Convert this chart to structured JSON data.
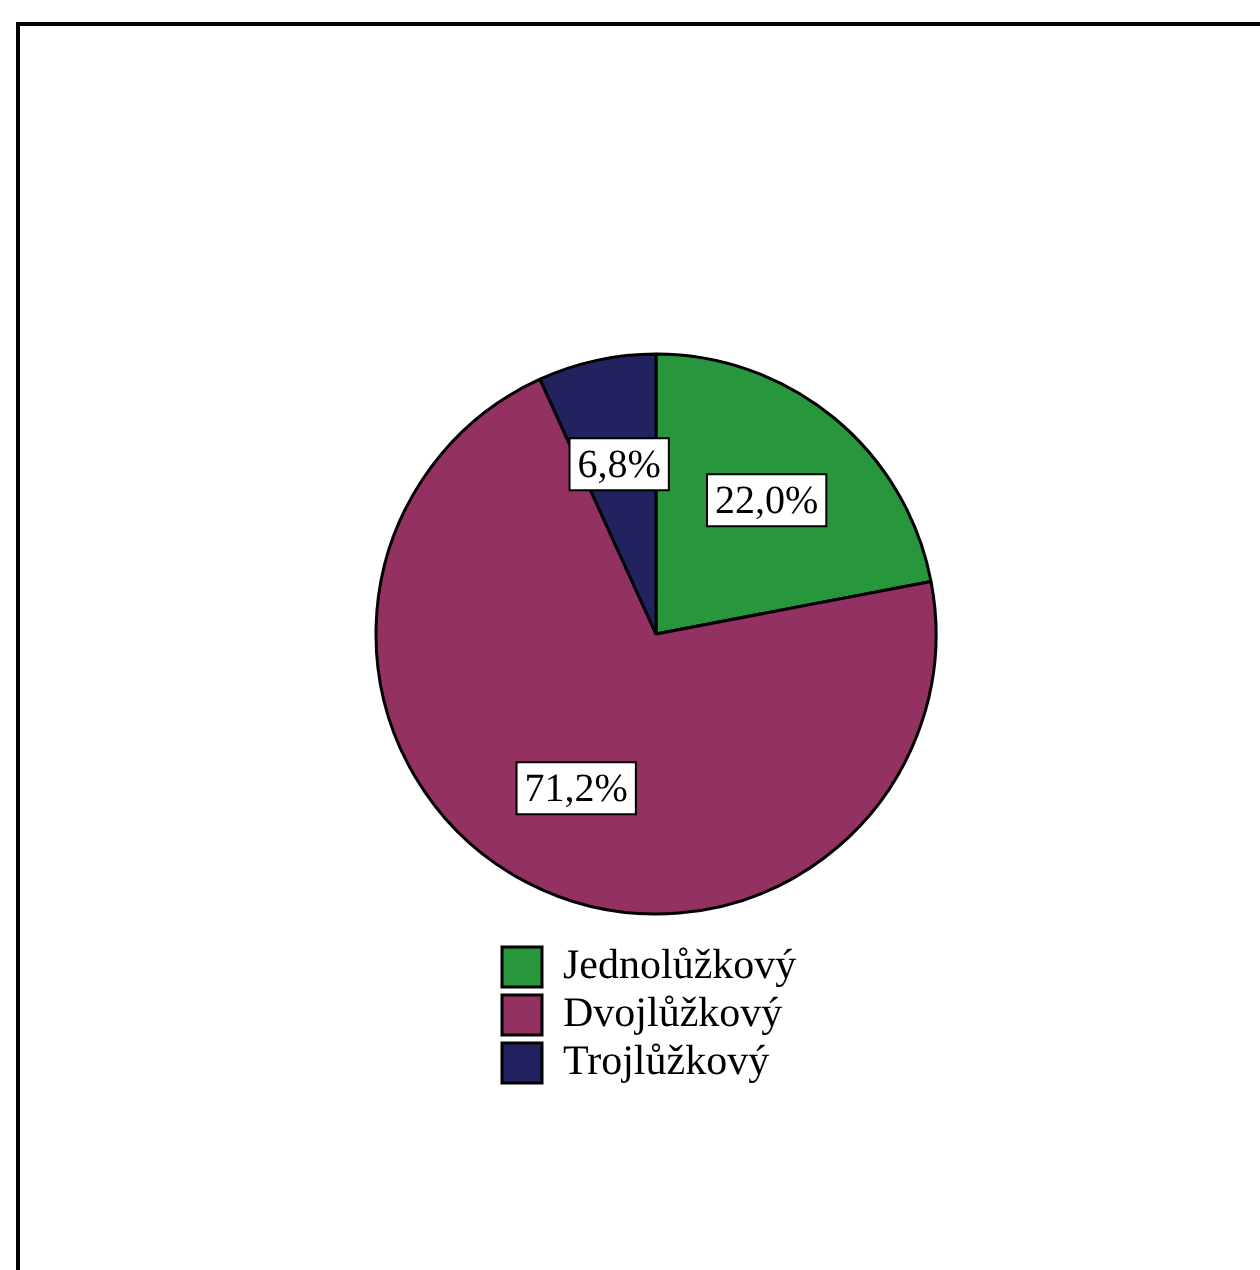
{
  "chart_data": {
    "type": "pie",
    "categories": [
      "Jednolůžkový",
      "Dvojlůžkový",
      "Trojlůžkový"
    ],
    "values": [
      22.0,
      71.2,
      6.8
    ],
    "colors": [
      "#28963c",
      "#933163",
      "#222260"
    ],
    "value_labels": [
      "22,0%",
      "71,2%",
      "6,8%"
    ],
    "legend": "bottom"
  }
}
